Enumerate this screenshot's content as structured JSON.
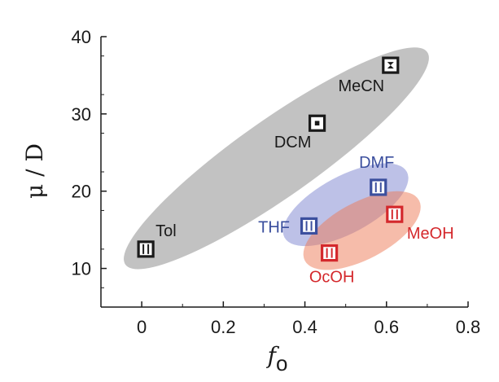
{
  "chart_data": {
    "type": "scatter",
    "title": "",
    "xlabel": "f",
    "xlabel_sub": "o",
    "ylabel": "μ / D",
    "xlim": [
      -0.1,
      0.8
    ],
    "ylim": [
      5,
      40
    ],
    "xticks": [
      0,
      0.2,
      0.4,
      0.6,
      0.8
    ],
    "xtick_labels": [
      "0",
      "0.2",
      "0.4",
      "0.6",
      "0.8"
    ],
    "yticks": [
      10,
      20,
      30,
      40
    ],
    "ytick_labels": [
      "10",
      "20",
      "30",
      "40"
    ],
    "grid": false,
    "colors": {
      "black": "#1a1a1a",
      "blue": "#3b4f9e",
      "red": "#d4282c"
    },
    "points": [
      {
        "label": "Tol",
        "x": 0.01,
        "y": 12.5,
        "color": "black",
        "glyph": "hollow"
      },
      {
        "label": "DCM",
        "x": 0.43,
        "y": 28.8,
        "color": "black",
        "glyph": "dot"
      },
      {
        "label": "MeCN",
        "x": 0.61,
        "y": 36.3,
        "color": "black",
        "glyph": "hourglass"
      },
      {
        "label": "THF",
        "x": 0.41,
        "y": 15.5,
        "color": "blue",
        "glyph": "hollow"
      },
      {
        "label": "DMF",
        "x": 0.58,
        "y": 20.5,
        "color": "blue",
        "glyph": "hollow"
      },
      {
        "label": "OcOH",
        "x": 0.46,
        "y": 12.0,
        "color": "red",
        "glyph": "hollow"
      },
      {
        "label": "MeOH",
        "x": 0.62,
        "y": 17.0,
        "color": "red",
        "glyph": "hollow"
      }
    ],
    "regions": [
      {
        "color": "#8f8f8f",
        "opacity": 0.55,
        "from": [
          -0.04,
          10.5
        ],
        "to": [
          0.7,
          38.0
        ],
        "half_width": 0.095
      },
      {
        "color": "#7c83cf",
        "opacity": 0.5,
        "from": [
          0.35,
          14.0
        ],
        "to": [
          0.65,
          22.5
        ],
        "half_width": 0.07
      },
      {
        "color": "#ee7a55",
        "opacity": 0.5,
        "from": [
          0.4,
          11.0
        ],
        "to": [
          0.68,
          18.8
        ],
        "half_width": 0.07
      }
    ]
  }
}
